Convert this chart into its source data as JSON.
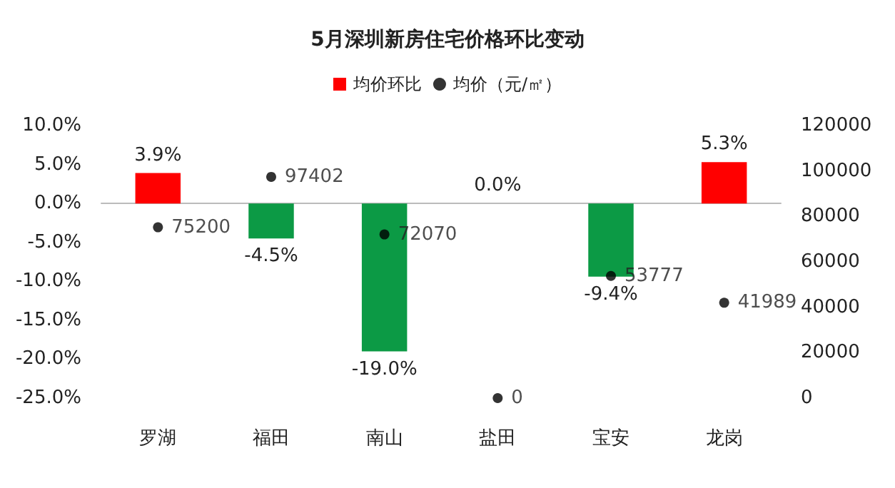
{
  "chart_data": {
    "type": "bar",
    "title": "5月深圳新房住宅价格环比变动",
    "categories": [
      "罗湖",
      "福田",
      "南山",
      "盐田",
      "宝安",
      "龙岗"
    ],
    "series": [
      {
        "name": "均价环比",
        "color": "#ff0000",
        "colors": [
          "#ff0000",
          "#0c9a45",
          "#0c9a45",
          "#0c9a45",
          "#0c9a45",
          "#ff0000"
        ],
        "values": [
          3.9,
          -4.5,
          -19.0,
          0.0,
          -9.4,
          5.3
        ],
        "value_labels": [
          "3.9%",
          "-4.5%",
          "-19.0%",
          "0.0%",
          "-9.4%",
          "5.3%"
        ]
      },
      {
        "name": "均价（元/㎡）",
        "type": "scatter",
        "axis": "y2",
        "color": "#000000",
        "marker": "circle",
        "values": [
          75200,
          97402,
          72070,
          0,
          53777,
          41989
        ],
        "value_labels": [
          "75200",
          "97402",
          "72070",
          "0",
          "53777",
          "41989"
        ]
      }
    ],
    "ylim": [
      -25,
      10
    ],
    "yticks": [
      {
        "value": -25,
        "label": "-25.0%"
      },
      {
        "value": -20,
        "label": "-20.0%"
      },
      {
        "value": -15,
        "label": "-15.0%"
      },
      {
        "value": -10,
        "label": "-10.0%"
      },
      {
        "value": -5,
        "label": "-5.0%"
      },
      {
        "value": 0,
        "label": "0.0%"
      },
      {
        "value": 5,
        "label": "5.0%"
      },
      {
        "value": 10,
        "label": "10.0%"
      }
    ],
    "y2lim": [
      0,
      120000
    ],
    "y2ticks": [
      0,
      20000,
      40000,
      60000,
      80000,
      100000,
      120000
    ],
    "legend": "top"
  }
}
